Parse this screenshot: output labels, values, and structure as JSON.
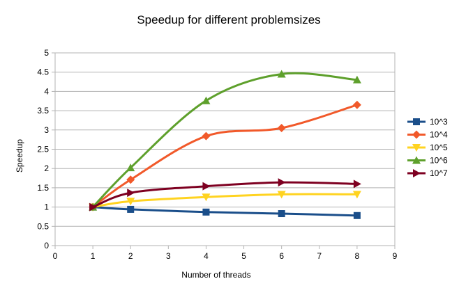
{
  "chart_data": {
    "type": "line",
    "title": "Speedup for different problemsizes",
    "xlabel": "Number of threads",
    "ylabel": "Speedup",
    "xlim": [
      0,
      9
    ],
    "ylim": [
      0,
      5
    ],
    "xticks": [
      "0",
      "1",
      "2",
      "3",
      "4",
      "5",
      "6",
      "7",
      "8",
      "9"
    ],
    "yticks": [
      "0",
      "0.5",
      "1",
      "1.5",
      "2",
      "2.5",
      "3",
      "3.5",
      "4",
      "4.5",
      "5"
    ],
    "grid": "horizontal",
    "legend_position": "right",
    "x": [
      1,
      2,
      4,
      6,
      8
    ],
    "series": [
      {
        "name": "10^3",
        "values": [
          1.0,
          0.94,
          0.87,
          0.83,
          0.78
        ],
        "color": "#1a4e8a",
        "marker": "square"
      },
      {
        "name": "10^4",
        "values": [
          1.0,
          1.71,
          2.84,
          3.05,
          3.65
        ],
        "color": "#f1592a",
        "marker": "diamond"
      },
      {
        "name": "10^5",
        "values": [
          1.0,
          1.15,
          1.26,
          1.33,
          1.33
        ],
        "color": "#ffd320",
        "marker": "triangle-down"
      },
      {
        "name": "10^6",
        "values": [
          1.0,
          2.02,
          3.76,
          4.45,
          4.3
        ],
        "color": "#5ea02c",
        "marker": "triangle-up"
      },
      {
        "name": "10^7",
        "values": [
          1.0,
          1.37,
          1.54,
          1.64,
          1.6
        ],
        "color": "#7e0021",
        "marker": "triangle-right"
      }
    ]
  }
}
